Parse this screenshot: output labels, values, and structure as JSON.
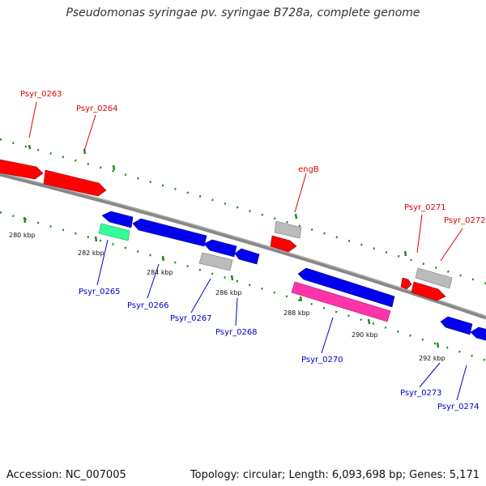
{
  "title": "Pseudomonas syringae pv. syringae B728a, complete genome",
  "footer": {
    "accession": "Accession: NC_007005",
    "summary": "Topology: circular; Length: 6,093,698 bp; Genes: 5,171"
  },
  "colors": {
    "forward_gene": "#ff0000",
    "reverse_gene": "#0000ee",
    "pseudo_gene": "#bbbbbb",
    "rna_gene": "#33ff99",
    "highlight_gene": "#ff33aa",
    "backbone": "#888888",
    "tick": "#228B22",
    "forward_label": "#dd0000",
    "reverse_label": "#0000cc"
  },
  "scale_labels": [
    "280 kbp",
    "282 kbp",
    "284 kbp",
    "286 kbp",
    "288 kbp",
    "290 kbp",
    "292 kbp"
  ],
  "gene_labels": {
    "forward": [
      "Psyr_0263",
      "Psyr_0264",
      "engB",
      "Psyr_0271",
      "Psyr_0272"
    ],
    "reverse": [
      "Psyr_0265",
      "Psyr_0266",
      "Psyr_0267",
      "Psyr_0268",
      "Psyr_0270",
      "Psyr_0273",
      "Psyr_0274"
    ]
  }
}
